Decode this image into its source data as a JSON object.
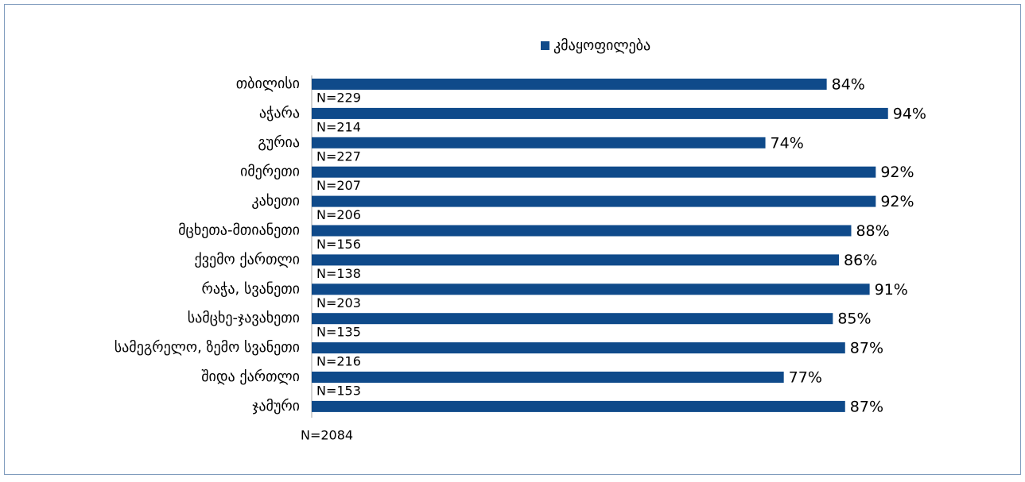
{
  "chart_data": {
    "type": "bar",
    "orientation": "horizontal",
    "categories": [
      "თბილისი",
      "აჭარა",
      "გურია",
      "იმერეთი",
      "კახეთი",
      "მცხეთა-მთიანეთი",
      "ქვემო ქართლი",
      "რაჭა, სვანეთი",
      "სამცხე-ჯავახეთი",
      "სამეგრელო, ზემო სვანეთი",
      "შიდა ქართლი",
      "ჯამური"
    ],
    "series": [
      {
        "name": "კმაყოფილება",
        "color": "#0f4a8a",
        "values": [
          84,
          94,
          74,
          92,
          92,
          88,
          86,
          91,
          85,
          87,
          77,
          87
        ],
        "value_labels": [
          "84%",
          "94%",
          "74%",
          "92%",
          "92%",
          "88%",
          "86%",
          "91%",
          "85%",
          "87%",
          "77%",
          "87%"
        ]
      }
    ],
    "annotations": [
      "N=229",
      "N=214",
      "N=227",
      "N=207",
      "N=206",
      "N=156",
      "N=138",
      "N=203",
      "N=135",
      "N=216",
      "N=153",
      "N=2084"
    ],
    "legend": "top"
  }
}
